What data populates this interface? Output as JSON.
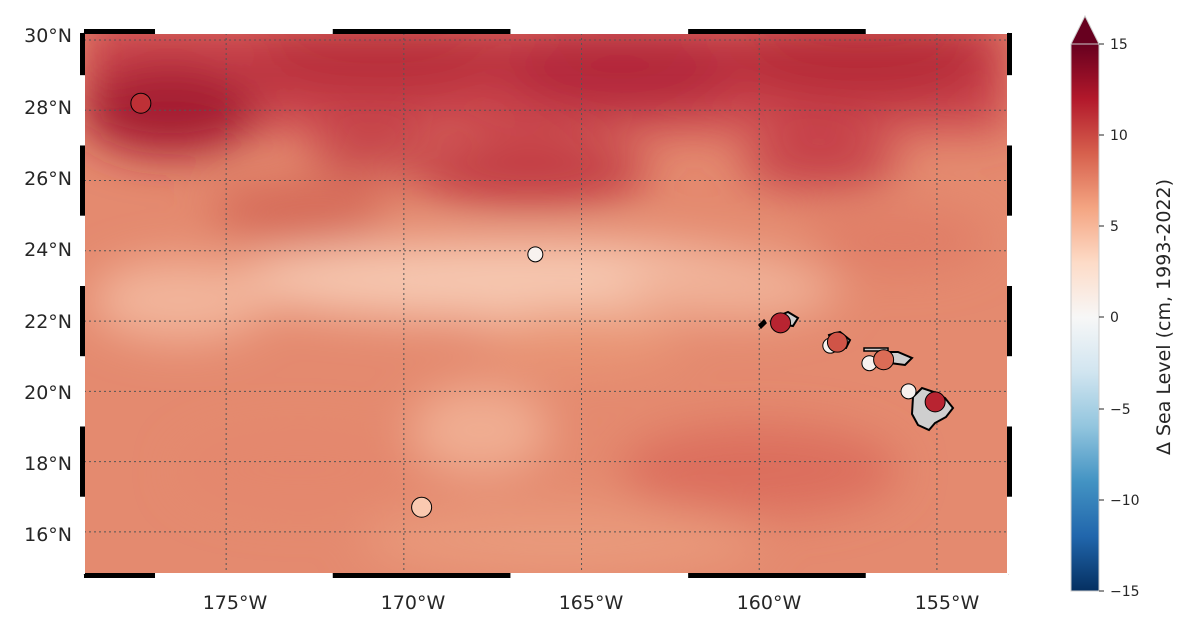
{
  "map": {
    "lon_range": [
      -179.0,
      -153.0
    ],
    "lat_range": [
      14.8,
      30.2
    ],
    "grid_lons": [
      -175,
      -170,
      -165,
      -160,
      -155
    ],
    "grid_lats": [
      16,
      18,
      20,
      22,
      24,
      26,
      28,
      30
    ],
    "lon_labels": [
      "175°W",
      "170°W",
      "165°W",
      "160°W",
      "155°W"
    ],
    "lat_labels": [
      "16°N",
      "18°N",
      "20°N",
      "22°N",
      "24°N",
      "26°N",
      "28°N",
      "30°N"
    ],
    "gridline_style": "dotted",
    "frame_style": "black-white alternating"
  },
  "colorbar": {
    "label": "Δ Sea Level (cm, 1993-2022)",
    "ticks": [
      "15",
      "10",
      "5",
      "0",
      "−5",
      "−10",
      "−15"
    ],
    "tick_values": [
      15,
      10,
      5,
      0,
      -5,
      -10,
      -15
    ],
    "range": [
      -15,
      15
    ],
    "colormap": "RdBu_r",
    "extend": "max"
  },
  "stations": [
    {
      "lon": -177.4,
      "lat": 28.2,
      "value": 11
    },
    {
      "lon": -166.3,
      "lat": 23.9,
      "value": 0.5
    },
    {
      "lon": -169.5,
      "lat": 16.7,
      "value": 4
    },
    {
      "lon": -159.4,
      "lat": 21.95,
      "value": 11.5
    },
    {
      "lon": -158.0,
      "lat": 21.3,
      "value": 0.5
    },
    {
      "lon": -157.8,
      "lat": 21.4,
      "value": 9.5
    },
    {
      "lon": -156.9,
      "lat": 20.8,
      "value": 0.5
    },
    {
      "lon": -156.5,
      "lat": 20.9,
      "value": 8.5
    },
    {
      "lon": -155.8,
      "lat": 20.0,
      "value": 0.5
    },
    {
      "lon": -155.05,
      "lat": 19.7,
      "value": 11.5
    }
  ]
}
